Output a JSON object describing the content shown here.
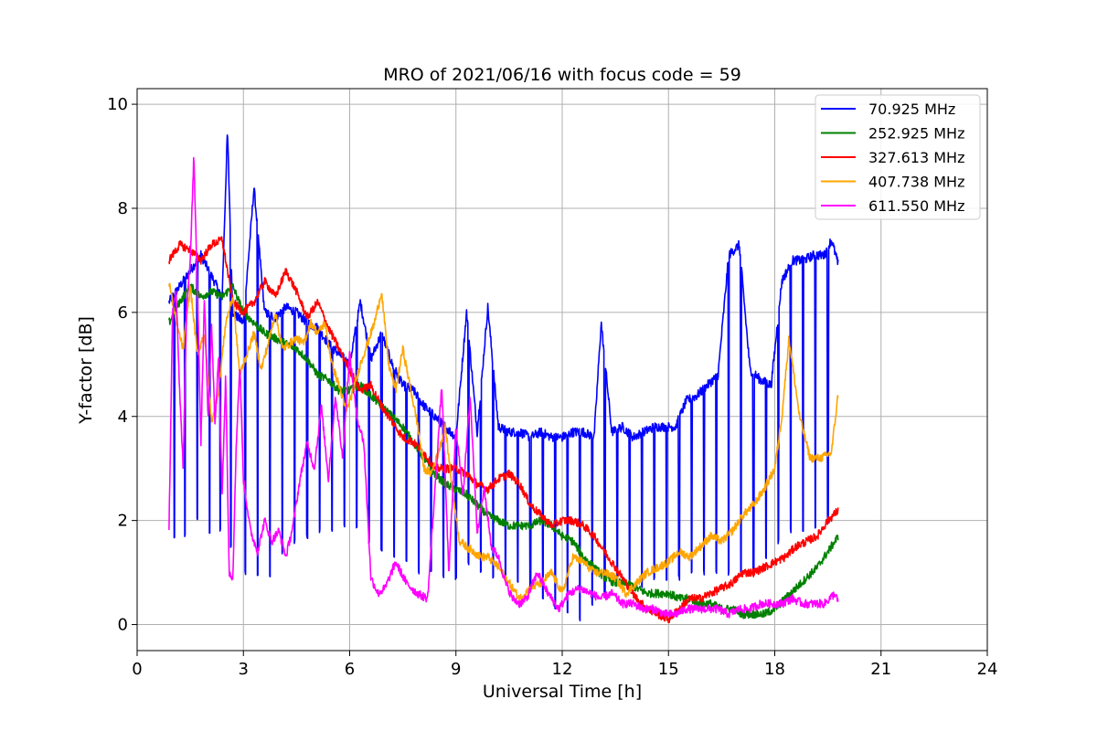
{
  "chart_data": {
    "type": "line",
    "title": "MRO of 2021/06/16 with focus code = 59",
    "xlabel": "Universal Time [h]",
    "ylabel": "Y-factor [dB]",
    "xlim": [
      0,
      24
    ],
    "ylim": [
      -0.5,
      10.3
    ],
    "xticks": [
      0,
      3,
      6,
      9,
      12,
      15,
      18,
      21,
      24
    ],
    "yticks": [
      0,
      2,
      4,
      6,
      8,
      10
    ],
    "grid": true,
    "legend_position": "top-right",
    "series": [
      {
        "name": " 70.925 MHz",
        "color": "#0000ff",
        "x": [
          0.9,
          1.2,
          1.5,
          1.8,
          2.1,
          2.4,
          2.55,
          2.7,
          3.0,
          3.3,
          3.6,
          3.9,
          4.2,
          4.5,
          4.8,
          5.1,
          5.4,
          5.7,
          6.0,
          6.3,
          6.6,
          6.9,
          7.2,
          7.5,
          7.8,
          8.1,
          8.4,
          8.7,
          9.0,
          9.3,
          9.6,
          9.9,
          10.2,
          10.5,
          10.8,
          11.1,
          11.4,
          11.7,
          12.0,
          12.3,
          12.6,
          12.9,
          13.1,
          13.4,
          13.7,
          14.0,
          14.3,
          14.6,
          14.9,
          15.2,
          15.5,
          15.8,
          16.1,
          16.4,
          16.7,
          17.0,
          17.3,
          17.6,
          17.9,
          18.2,
          18.5,
          18.8,
          19.1,
          19.4,
          19.6,
          19.8
        ],
        "y": [
          6.2,
          6.5,
          6.8,
          7.1,
          6.7,
          6.3,
          9.5,
          6.0,
          5.8,
          8.4,
          6.0,
          5.9,
          6.1,
          6.0,
          5.8,
          5.7,
          5.4,
          5.2,
          5.0,
          6.2,
          5.1,
          5.6,
          5.0,
          4.6,
          4.5,
          4.2,
          4.0,
          3.8,
          3.6,
          6.0,
          3.7,
          6.1,
          3.8,
          3.7,
          3.7,
          3.6,
          3.7,
          3.6,
          3.6,
          3.7,
          3.7,
          3.6,
          5.8,
          3.7,
          3.8,
          3.6,
          3.7,
          3.8,
          3.8,
          3.8,
          4.3,
          4.4,
          4.6,
          4.8,
          7.1,
          7.3,
          4.9,
          4.7,
          4.6,
          6.6,
          7.0,
          7.0,
          7.1,
          7.1,
          7.4,
          6.9
        ],
        "dips": [
          1.05,
          1.35,
          1.7,
          2.05,
          2.35,
          2.65,
          3.05,
          3.4,
          3.75,
          4.1,
          4.45,
          4.8,
          5.15,
          5.5,
          5.85,
          6.2,
          6.55,
          6.9,
          7.25,
          7.6,
          7.95,
          8.3,
          8.65,
          9.0,
          9.35,
          9.7,
          10.05,
          10.4,
          10.75,
          11.1,
          11.45,
          11.8,
          12.15,
          12.5,
          12.85,
          13.2,
          13.55,
          13.9,
          14.25,
          14.6,
          14.95,
          15.3,
          15.65,
          16.0,
          16.35,
          16.7,
          17.05,
          17.4,
          17.75,
          18.1,
          18.45,
          18.8,
          19.15,
          19.5
        ],
        "dip_values": [
          1.7,
          1.7,
          2.0,
          1.8,
          1.8,
          1.5,
          1.0,
          0.9,
          0.9,
          1.4,
          1.6,
          1.7,
          1.8,
          1.8,
          1.9,
          1.9,
          1.6,
          1.4,
          1.3,
          1.2,
          1.0,
          1.0,
          0.9,
          0.9,
          1.2,
          1.0,
          0.9,
          0.9,
          0.8,
          0.7,
          0.5,
          0.3,
          0.2,
          0.1,
          0.4,
          0.6,
          0.8,
          0.7,
          0.7,
          0.9,
          0.9,
          0.9,
          1.0,
          1.0,
          1.0,
          1.0,
          1.0,
          1.0,
          1.3,
          1.6,
          1.8,
          1.8,
          1.9,
          2.0
        ]
      },
      {
        "name": "252.925 MHz",
        "color": "#008000",
        "x": [
          0.9,
          1.2,
          1.5,
          1.8,
          2.1,
          2.4,
          2.7,
          3.0,
          3.3,
          3.6,
          3.9,
          4.2,
          4.5,
          4.8,
          5.1,
          5.4,
          5.7,
          6.0,
          6.3,
          6.6,
          6.9,
          7.2,
          7.5,
          7.8,
          8.1,
          8.4,
          8.7,
          9.0,
          9.3,
          9.6,
          9.9,
          10.2,
          10.5,
          10.8,
          11.1,
          11.4,
          11.7,
          12.0,
          12.3,
          12.6,
          12.9,
          13.2,
          13.5,
          13.8,
          14.1,
          14.4,
          14.7,
          15.0,
          15.3,
          15.6,
          15.9,
          16.2,
          16.5,
          16.8,
          17.1,
          17.4,
          17.7,
          18.0,
          18.3,
          18.6,
          18.9,
          19.2,
          19.5,
          19.8
        ],
        "y": [
          5.8,
          6.2,
          6.5,
          6.3,
          6.4,
          6.3,
          6.5,
          6.0,
          5.8,
          5.6,
          5.5,
          5.4,
          5.3,
          5.1,
          4.8,
          4.7,
          4.5,
          4.5,
          4.6,
          4.4,
          4.2,
          4.0,
          3.8,
          3.5,
          3.2,
          2.9,
          2.7,
          2.6,
          2.5,
          2.3,
          2.1,
          2.0,
          1.9,
          1.9,
          1.9,
          2.0,
          1.9,
          1.7,
          1.6,
          1.3,
          1.1,
          0.9,
          0.8,
          0.8,
          0.7,
          0.6,
          0.6,
          0.6,
          0.5,
          0.5,
          0.4,
          0.4,
          0.3,
          0.3,
          0.2,
          0.2,
          0.2,
          0.3,
          0.5,
          0.7,
          0.9,
          1.1,
          1.4,
          1.7
        ]
      },
      {
        "name": "327.613 MHz",
        "color": "#ff0000",
        "x": [
          0.9,
          1.2,
          1.5,
          1.8,
          2.1,
          2.4,
          2.7,
          3.0,
          3.3,
          3.6,
          3.9,
          4.2,
          4.5,
          4.8,
          5.1,
          5.4,
          5.7,
          6.0,
          6.3,
          6.6,
          6.9,
          7.2,
          7.5,
          7.8,
          8.1,
          8.4,
          8.7,
          9.0,
          9.3,
          9.6,
          9.9,
          10.2,
          10.5,
          10.8,
          11.1,
          11.4,
          11.7,
          12.0,
          12.3,
          12.6,
          12.9,
          13.2,
          13.5,
          13.8,
          14.1,
          14.4,
          14.7,
          15.0,
          15.3,
          15.6,
          15.9,
          16.2,
          16.5,
          16.8,
          17.1,
          17.4,
          17.7,
          18.0,
          18.3,
          18.6,
          18.9,
          19.2,
          19.5,
          19.8
        ],
        "y": [
          7.0,
          7.3,
          7.2,
          7.0,
          7.3,
          7.4,
          6.2,
          6.0,
          6.2,
          6.6,
          6.3,
          6.8,
          6.4,
          5.9,
          6.2,
          5.7,
          5.3,
          4.9,
          4.5,
          4.6,
          4.2,
          3.9,
          3.6,
          3.5,
          3.3,
          3.0,
          3.0,
          3.0,
          2.9,
          2.7,
          2.6,
          2.8,
          2.9,
          2.7,
          2.3,
          2.1,
          1.9,
          2.0,
          2.0,
          1.9,
          1.7,
          1.4,
          1.1,
          0.8,
          0.5,
          0.3,
          0.2,
          0.1,
          0.3,
          0.5,
          0.5,
          0.6,
          0.7,
          0.8,
          1.0,
          1.0,
          1.1,
          1.2,
          1.3,
          1.5,
          1.6,
          1.7,
          2.0,
          2.2
        ]
      },
      {
        "name": "407.738 MHz",
        "color": "#ffa500",
        "x": [
          0.9,
          1.1,
          1.3,
          1.5,
          1.7,
          1.9,
          2.1,
          2.3,
          2.5,
          2.7,
          2.9,
          3.1,
          3.3,
          3.5,
          3.7,
          3.9,
          4.1,
          4.3,
          4.5,
          4.7,
          4.9,
          5.1,
          5.3,
          5.5,
          5.7,
          5.9,
          6.1,
          6.3,
          6.5,
          6.7,
          6.9,
          7.1,
          7.3,
          7.5,
          7.7,
          7.9,
          8.1,
          8.3,
          8.5,
          8.7,
          8.9,
          9.1,
          9.3,
          9.5,
          9.7,
          9.9,
          10.2,
          10.5,
          10.8,
          11.1,
          11.4,
          11.7,
          12.0,
          12.3,
          12.6,
          12.9,
          13.2,
          13.5,
          13.8,
          14.1,
          14.4,
          14.7,
          15.0,
          15.3,
          15.6,
          15.9,
          16.2,
          16.5,
          16.8,
          17.1,
          17.4,
          17.7,
          18.0,
          18.2,
          18.4,
          18.7,
          19.0,
          19.3,
          19.6,
          19.8
        ],
        "y": [
          6.6,
          5.8,
          5.3,
          6.5,
          5.2,
          5.6,
          3.9,
          4.5,
          5.8,
          6.3,
          4.8,
          5.2,
          5.6,
          4.9,
          5.4,
          6.0,
          5.3,
          5.4,
          5.5,
          5.4,
          5.8,
          5.6,
          5.8,
          5.0,
          4.6,
          4.1,
          4.5,
          5.0,
          5.4,
          5.8,
          6.4,
          5.0,
          4.5,
          5.3,
          4.6,
          3.9,
          3.0,
          2.9,
          3.3,
          3.8,
          2.6,
          1.6,
          1.5,
          1.4,
          1.3,
          1.3,
          1.1,
          0.8,
          0.5,
          0.7,
          0.8,
          1.0,
          0.6,
          1.3,
          1.2,
          1.0,
          1.0,
          0.9,
          0.6,
          0.8,
          1.0,
          1.1,
          1.2,
          1.4,
          1.3,
          1.5,
          1.7,
          1.6,
          1.8,
          2.1,
          2.3,
          2.6,
          3.0,
          4.0,
          5.5,
          4.0,
          3.2,
          3.2,
          3.3,
          4.5
        ]
      },
      {
        "name": "611.550 MHz",
        "color": "#ff00ff",
        "x": [
          0.9,
          1.0,
          1.1,
          1.2,
          1.3,
          1.4,
          1.5,
          1.6,
          1.7,
          1.8,
          1.9,
          2.0,
          2.1,
          2.2,
          2.3,
          2.4,
          2.5,
          2.6,
          2.7,
          2.8,
          2.9,
          3.0,
          3.2,
          3.4,
          3.6,
          3.8,
          4.0,
          4.2,
          4.4,
          4.6,
          4.8,
          5.0,
          5.2,
          5.4,
          5.6,
          5.8,
          6.0,
          6.2,
          6.4,
          6.6,
          6.8,
          7.0,
          7.3,
          7.6,
          7.9,
          8.2,
          8.4,
          8.6,
          8.8,
          9.0,
          9.2,
          9.4,
          9.6,
          9.8,
          10.0,
          10.2,
          10.4,
          10.6,
          10.8,
          11.0,
          11.3,
          11.6,
          11.9,
          12.2,
          12.5,
          12.8,
          13.1,
          13.4,
          13.7,
          14.0,
          14.3,
          14.6,
          14.9,
          15.2,
          15.5,
          15.8,
          16.1,
          16.4,
          16.7,
          17.0,
          17.3,
          17.6,
          17.9,
          18.2,
          18.5,
          18.8,
          19.1,
          19.4,
          19.7,
          19.8
        ],
        "y": [
          1.8,
          6.0,
          6.4,
          4.5,
          3.0,
          6.2,
          7.0,
          9.0,
          6.5,
          3.5,
          6.3,
          4.0,
          5.8,
          3.8,
          5.2,
          2.5,
          4.8,
          1.0,
          0.9,
          3.5,
          5.0,
          2.8,
          1.8,
          1.4,
          2.0,
          1.6,
          1.8,
          1.3,
          1.9,
          2.8,
          3.5,
          3.0,
          4.2,
          2.8,
          4.4,
          3.2,
          5.2,
          4.0,
          3.5,
          0.9,
          0.6,
          0.7,
          1.2,
          0.8,
          0.6,
          0.5,
          2.5,
          4.6,
          1.0,
          3.8,
          2.5,
          4.4,
          1.8,
          2.6,
          1.5,
          1.3,
          0.8,
          0.5,
          0.4,
          0.5,
          1.0,
          0.6,
          0.3,
          0.6,
          0.7,
          0.6,
          0.5,
          0.6,
          0.4,
          0.4,
          0.3,
          0.3,
          0.2,
          0.2,
          0.3,
          0.3,
          0.3,
          0.3,
          0.2,
          0.3,
          0.3,
          0.4,
          0.4,
          0.4,
          0.5,
          0.4,
          0.4,
          0.4,
          0.6,
          0.4
        ]
      }
    ]
  }
}
